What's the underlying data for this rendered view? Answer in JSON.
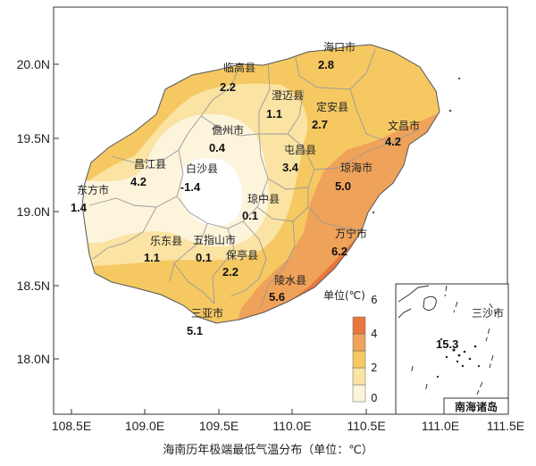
{
  "axes": {
    "x_ticks": [
      "108.5E",
      "109.0E",
      "109.5E",
      "110.0E",
      "110.5E",
      "111.0E",
      "111.5E"
    ],
    "y_ticks": [
      "20.0N",
      "19.5N",
      "19.0N",
      "18.5N",
      "18.0N"
    ]
  },
  "legend": {
    "title": "单位(℃)",
    "ticks": [
      "0",
      "2",
      "4",
      "6"
    ],
    "colors": [
      "#fdf4dc",
      "#fae3a3",
      "#f5c862",
      "#efa25a",
      "#e9773d"
    ]
  },
  "inset": {
    "region_label": "三沙市",
    "value": "15.3",
    "title": "南海诸岛"
  },
  "caption": "海南历年极端最低气温分布（单位：℃）",
  "stations": [
    {
      "name": "海口市",
      "value": "2.8"
    },
    {
      "name": "临高县",
      "value": "2.2"
    },
    {
      "name": "澄迈县",
      "value": "1.1"
    },
    {
      "name": "定安县",
      "value": "2.7"
    },
    {
      "name": "文昌市",
      "value": "4.2"
    },
    {
      "name": "儋州市",
      "value": "0.4"
    },
    {
      "name": "屯昌县",
      "value": "3.4"
    },
    {
      "name": "琼海市",
      "value": "5.0"
    },
    {
      "name": "昌江县",
      "value": "4.2"
    },
    {
      "name": "白沙县",
      "value": "-1.4"
    },
    {
      "name": "东方市",
      "value": "1.4"
    },
    {
      "name": "琼中县",
      "value": "0.1"
    },
    {
      "name": "万宁市",
      "value": "6.2"
    },
    {
      "name": "乐东县",
      "value": "1.1"
    },
    {
      "name": "五指山市",
      "value": "0.1"
    },
    {
      "name": "保亭县",
      "value": "2.2"
    },
    {
      "name": "陵水县",
      "value": "5.6"
    },
    {
      "name": "三亚市",
      "value": "5.1"
    }
  ]
}
